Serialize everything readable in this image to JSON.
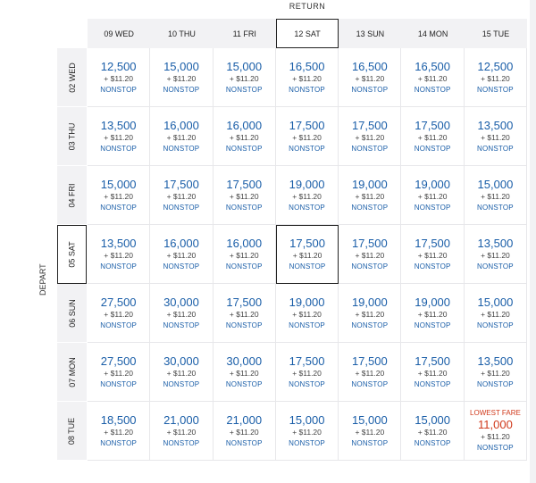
{
  "return_label": "RETURN",
  "depart_label": "DEPART",
  "columns": [
    "09 WED",
    "10 THU",
    "11 FRI",
    "12 SAT",
    "13 SUN",
    "14 MON",
    "15 TUE"
  ],
  "rows": [
    "02 WED",
    "03 THU",
    "04 FRI",
    "05 SAT",
    "06 SUN",
    "07 MON",
    "08 TUE"
  ],
  "selected_column": 3,
  "selected_row": 3,
  "fee": "+ $11.20",
  "stop_label": "NONSTOP",
  "lowest_fare_label": "LOWEST FARE",
  "lowest_cell": {
    "row": 6,
    "col": 6
  },
  "colors": {
    "price_blue": "#1a5ea8",
    "lowest_red": "#d0391b"
  },
  "fares": [
    [
      "12,500",
      "15,000",
      "15,000",
      "16,500",
      "16,500",
      "16,500",
      "12,500"
    ],
    [
      "13,500",
      "16,000",
      "16,000",
      "17,500",
      "17,500",
      "17,500",
      "13,500"
    ],
    [
      "15,000",
      "17,500",
      "17,500",
      "19,000",
      "19,000",
      "19,000",
      "15,000"
    ],
    [
      "13,500",
      "16,000",
      "16,000",
      "17,500",
      "17,500",
      "17,500",
      "13,500"
    ],
    [
      "27,500",
      "30,000",
      "17,500",
      "19,000",
      "19,000",
      "19,000",
      "15,000"
    ],
    [
      "27,500",
      "30,000",
      "30,000",
      "17,500",
      "17,500",
      "17,500",
      "13,500"
    ],
    [
      "18,500",
      "21,000",
      "21,000",
      "15,000",
      "15,000",
      "15,000",
      "11,000"
    ]
  ]
}
